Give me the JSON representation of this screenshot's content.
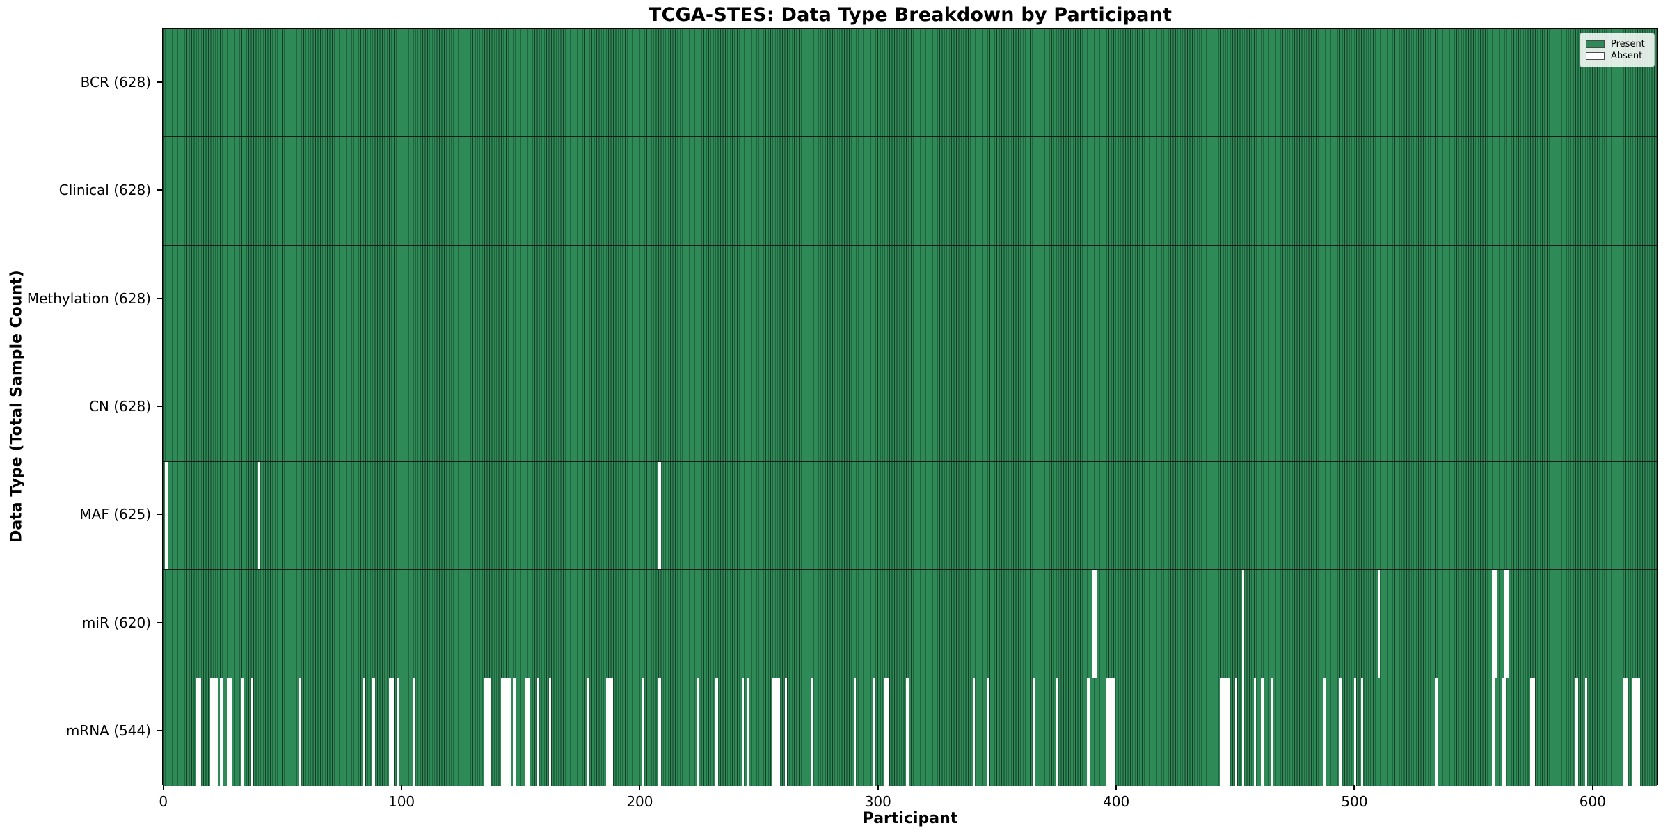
{
  "chart_data": {
    "type": "heatmap",
    "title": "TCGA-STES: Data Type Breakdown by Participant",
    "xlabel": "Participant",
    "ylabel": "Data Type (Total Sample Count)",
    "n_participants": 628,
    "x_ticks": [
      0,
      100,
      200,
      300,
      400,
      500,
      600
    ],
    "x_axis_range": [
      0,
      628
    ],
    "grid": false,
    "legend": {
      "position": "upper right",
      "present_label": "Present",
      "absent_label": "Absent"
    },
    "colors": {
      "present": "#2e8b57",
      "bar_edge": "#173d27",
      "absent": "#fdfdfc",
      "row_divider": "#1a1a1a"
    },
    "rows": [
      {
        "name": "BCR",
        "label": "BCR (628)",
        "present_count": 628,
        "absent_participants": []
      },
      {
        "name": "Clinical",
        "label": "Clinical (628)",
        "present_count": 628,
        "absent_participants": []
      },
      {
        "name": "Methylation",
        "label": "Methylation (628)",
        "present_count": 628,
        "absent_participants": []
      },
      {
        "name": "CN",
        "label": "CN (628)",
        "present_count": 628,
        "absent_participants": []
      },
      {
        "name": "MAF",
        "label": "MAF (625)",
        "present_count": 625,
        "absent_participants": [
          1,
          40,
          208
        ]
      },
      {
        "name": "miR",
        "label": "miR (620)",
        "present_count": 620,
        "absent_participants": [
          390,
          391,
          453,
          510,
          558,
          559,
          563,
          564
        ]
      },
      {
        "name": "mRNA",
        "label": "mRNA (544)",
        "present_count": 544,
        "absent_participants": [
          14,
          15,
          20,
          21,
          22,
          24,
          27,
          28,
          33,
          37,
          57,
          84,
          88,
          95,
          96,
          98,
          105,
          135,
          136,
          137,
          142,
          143,
          144,
          145,
          147,
          152,
          153,
          157,
          162,
          178,
          186,
          187,
          188,
          201,
          208,
          224,
          232,
          243,
          245,
          256,
          257,
          258,
          261,
          272,
          290,
          298,
          303,
          304,
          312,
          340,
          346,
          365,
          375,
          388,
          396,
          397,
          398,
          399,
          444,
          445,
          446,
          447,
          450,
          453,
          458,
          461,
          465,
          487,
          494,
          500,
          503,
          534,
          558,
          562,
          563,
          574,
          575,
          593,
          597,
          613,
          614,
          617,
          618,
          619
        ]
      }
    ]
  }
}
